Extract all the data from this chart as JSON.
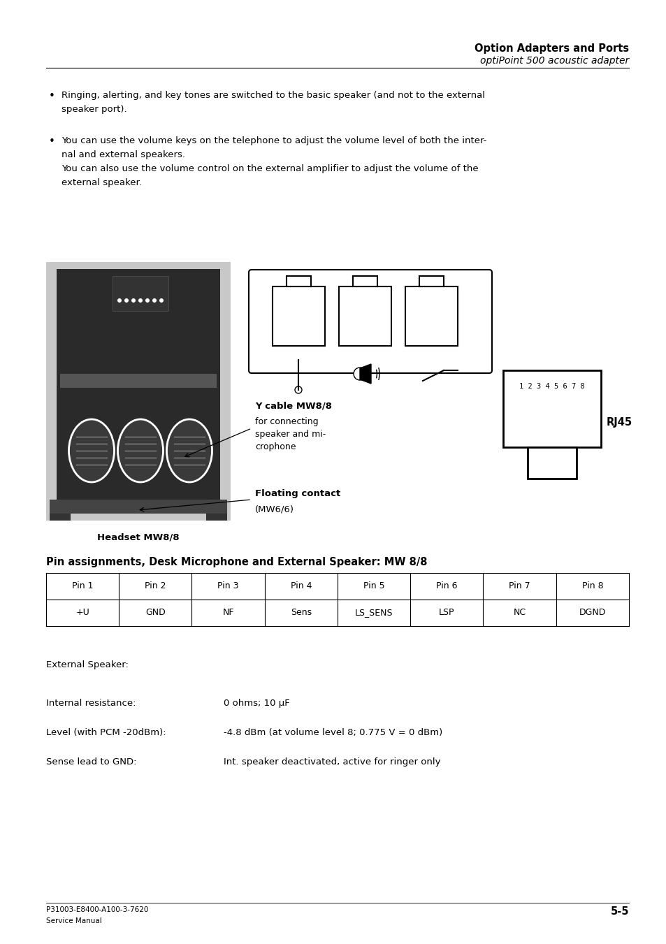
{
  "title_bold": "Option Adapters and Ports",
  "title_italic": "optiPoint 500 acoustic adapter",
  "bullet1_line1": "Ringing, alerting, and key tones are switched to the basic speaker (and not to the external",
  "bullet1_line2": "speaker port).",
  "bullet2_line1": "You can use the volume keys on the telephone to adjust the volume level of both the inter-",
  "bullet2_line2": "nal and external speakers.",
  "bullet2_line3": "You can also use the volume control on the external amplifier to adjust the volume of the",
  "bullet2_line4": "external speaker.",
  "label_ycable_bold": "Y cable MW8/8",
  "label_ycable_normal1": "for connecting",
  "label_ycable_normal2": "speaker and mi-",
  "label_ycable_normal3": "crophone",
  "label_floating_bold": "Floating contact",
  "label_floating_normal": "(MW6/6)",
  "label_headset": "Headset MW8/8",
  "label_rj45": "RJ45",
  "rj45_pins": "1 2 3 4 5 6 7 8",
  "table_title": "Pin assignments, Desk Microphone and External Speaker: MW 8/8",
  "table_headers": [
    "Pin 1",
    "Pin 2",
    "Pin 3",
    "Pin 4",
    "Pin 5",
    "Pin 6",
    "Pin 7",
    "Pin 8"
  ],
  "table_values": [
    "+U",
    "GND",
    "NF",
    "Sens",
    "LS_SENS",
    "LSP",
    "NC",
    "DGND"
  ],
  "ext_speaker_label": "External Speaker:",
  "prop1_label": "Internal resistance:",
  "prop1_value": "0 ohms; 10 μF",
  "prop2_label": "Level (with PCM -20dBm):",
  "prop2_value": "-4.8 dBm (at volume level 8; 0.775 V = 0 dBm)",
  "prop3_label": "Sense lead to GND:",
  "prop3_value": "Int. speaker deactivated, active for ringer only",
  "footer_line1": "P31003-E8400-A100-3-7620",
  "footer_line2": "Service Manual",
  "page_number": "5-5",
  "bg_color": "#ffffff",
  "text_color": "#000000"
}
